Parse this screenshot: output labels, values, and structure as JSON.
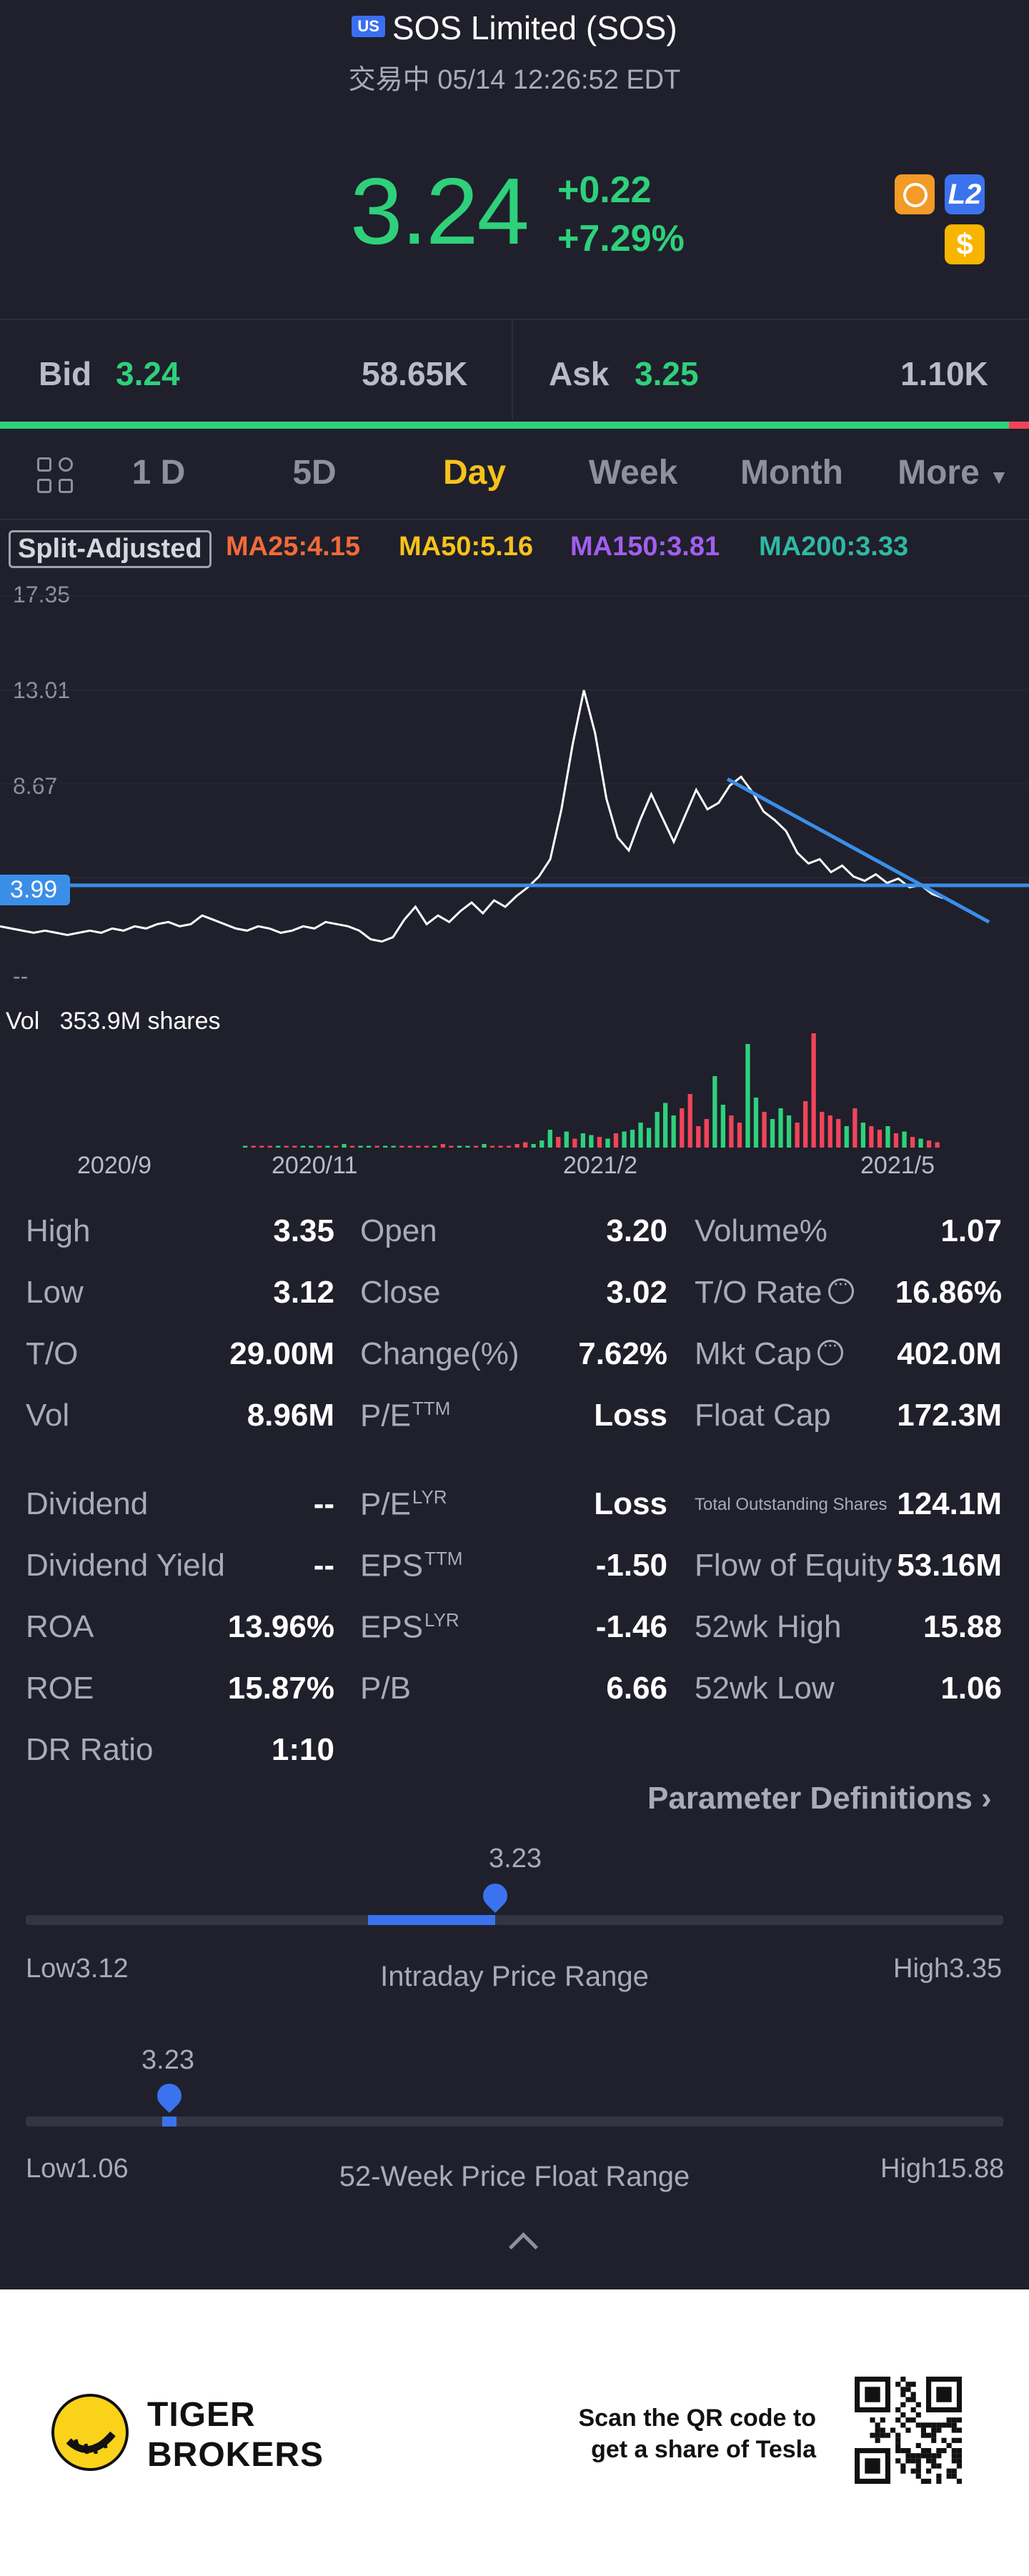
{
  "header": {
    "market_badge": "US",
    "title": "SOS Limited (SOS)",
    "subtitle": "交易中 05/14 12:26:52 EDT"
  },
  "quote": {
    "price": "3.24",
    "change": "+0.22",
    "change_pct": "+7.29%",
    "badges": {
      "level2": "L2",
      "dollar": "$"
    }
  },
  "bid_ask": {
    "bid_label": "Bid",
    "bid_price": "3.24",
    "bid_size": "58.65K",
    "ask_label": "Ask",
    "ask_price": "3.25",
    "ask_size": "1.10K",
    "bid_ratio": 0.98
  },
  "tabs": [
    "1 D",
    "5D",
    "Day",
    "Week",
    "Month",
    "More"
  ],
  "active_tab": "Day",
  "chart_toolbar": {
    "split_label": "Split-Adjusted",
    "ma": [
      {
        "label": "MA25:4.15",
        "color": "#f26a3a"
      },
      {
        "label": "MA50:5.16",
        "color": "#f7c21b"
      },
      {
        "label": "MA150:3.81",
        "color": "#a25ef0"
      },
      {
        "label": "MA200:3.33",
        "color": "#2fb9a4"
      }
    ]
  },
  "chart_data": {
    "type": "line",
    "y_ticks": [
      "17.35",
      "13.01",
      "8.67",
      "--"
    ],
    "y_range": [
      0.0,
      17.35
    ],
    "current_line_value": "3.99",
    "x_labels": [
      "2020/9",
      "2020/11",
      "2021/2",
      "2021/5"
    ],
    "price_series": [
      2.1,
      2.0,
      1.9,
      1.8,
      1.9,
      1.8,
      1.7,
      1.8,
      1.9,
      1.8,
      2.0,
      1.9,
      2.1,
      2.0,
      2.2,
      2.3,
      2.1,
      2.2,
      2.6,
      2.4,
      2.2,
      2.0,
      1.9,
      2.1,
      2.0,
      1.8,
      1.9,
      2.1,
      2.0,
      2.3,
      2.2,
      2.1,
      1.9,
      1.5,
      1.4,
      1.6,
      2.4,
      3.0,
      2.2,
      2.6,
      2.3,
      2.8,
      3.2,
      2.7,
      3.3,
      3.0,
      3.5,
      3.9,
      4.4,
      5.2,
      7.5,
      10.5,
      13.0,
      11.0,
      8.0,
      6.2,
      5.6,
      7.0,
      8.2,
      7.1,
      6.0,
      7.2,
      8.4,
      7.5,
      7.8,
      8.6,
      9.0,
      8.3,
      7.4,
      7.0,
      6.5,
      5.5,
      5.0,
      5.2,
      4.6,
      4.9,
      4.4,
      4.2,
      4.5,
      4.1,
      4.3,
      3.9,
      4.0,
      3.6,
      3.4
    ],
    "volume_series": [
      1,
      1,
      1,
      1,
      1,
      1,
      1,
      1,
      1,
      1,
      1,
      1,
      2,
      1,
      1,
      1,
      1,
      1,
      1,
      1,
      1,
      1,
      1,
      1,
      2,
      1,
      1,
      1,
      1,
      2,
      1,
      1,
      1,
      2,
      3,
      2,
      4,
      10,
      6,
      9,
      5,
      8,
      7,
      6,
      5,
      8,
      9,
      10,
      14,
      11,
      20,
      25,
      18,
      22,
      30,
      12,
      16,
      40,
      24,
      18,
      14,
      58,
      28,
      20,
      16,
      22,
      18,
      14,
      26,
      64,
      20,
      18,
      16,
      12,
      22,
      14,
      12,
      10,
      12,
      8,
      9,
      6,
      5,
      4,
      3
    ],
    "trendline": {
      "start_value": 8.9,
      "end_value": 2.3
    }
  },
  "volume": {
    "label": "Vol",
    "value": "353.9M shares"
  },
  "stats": [
    {
      "label": "High",
      "value": "3.35"
    },
    {
      "label": "Open",
      "value": "3.20"
    },
    {
      "label": "Volume%",
      "value": "1.07"
    },
    {
      "label": "Low",
      "value": "3.12"
    },
    {
      "label": "Close",
      "value": "3.02"
    },
    {
      "label": "T/O Rate",
      "value": "16.86%"
    },
    {
      "label": "T/O",
      "value": "29.00M"
    },
    {
      "label": "Change(%)",
      "value": "7.62%"
    },
    {
      "label": "Mkt Cap",
      "value": "402.0M"
    },
    {
      "label": "Vol",
      "value": "8.96M"
    },
    {
      "label": "P/E",
      "sup": "TTM",
      "value": "Loss"
    },
    {
      "label": "Float Cap",
      "value": "172.3M"
    },
    {
      "label": "Dividend",
      "value": "--"
    },
    {
      "label": "P/E",
      "sup": "LYR",
      "value": "Loss"
    },
    {
      "label": "Total Outstanding Shares",
      "value": "124.1M"
    },
    {
      "label": "Dividend Yield",
      "value": "--"
    },
    {
      "label": "EPS",
      "sup": "TTM",
      "value": "-1.50"
    },
    {
      "label": "Flow of Equity",
      "value": "53.16M"
    },
    {
      "label": "ROA",
      "value": "13.96%"
    },
    {
      "label": "EPS",
      "sup": "LYR",
      "value": "-1.46"
    },
    {
      "label": "52wk High",
      "value": "15.88"
    },
    {
      "label": "ROE",
      "value": "15.87%"
    },
    {
      "label": "P/B",
      "value": "6.66"
    },
    {
      "label": "52wk Low",
      "value": "1.06"
    },
    {
      "label": "DR Ratio",
      "value": "1:10"
    }
  ],
  "param_link": "Parameter Definitions",
  "intraday_range": {
    "current": "3.23",
    "low_label": "Low",
    "low": "3.12",
    "high_label": "High",
    "high": "3.35",
    "title": "Intraday Price Range",
    "current_fraction": 0.48,
    "fill_start_fraction": 0.35
  },
  "week52_range": {
    "current": "3.23",
    "low_label": "Low",
    "low": "1.06",
    "high_label": "High",
    "high": "15.88",
    "title": "52-Week Price Float Range",
    "current_fraction": 0.147
  },
  "footer": {
    "brand_line1": "TIGER",
    "brand_line2": "BROKERS",
    "qr_line1": "Scan the QR code to",
    "qr_line2": "get a share of Tesla"
  }
}
